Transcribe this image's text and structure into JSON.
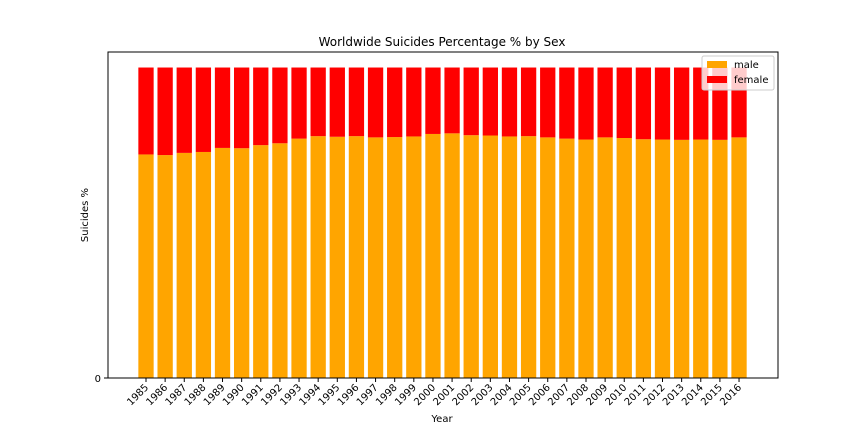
{
  "chart_data": {
    "type": "bar",
    "stacked": true,
    "title": "Worldwide Suicides Percentage % by Sex",
    "xlabel": "Year",
    "ylabel": "Suicides %",
    "ylim": [
      0,
      1.05
    ],
    "yticks": [
      "0"
    ],
    "legend_position": "top-right",
    "categories": [
      "1985",
      "1986",
      "1987",
      "1988",
      "1989",
      "1990",
      "1991",
      "1992",
      "1993",
      "1994",
      "1995",
      "1996",
      "1997",
      "1998",
      "1999",
      "2000",
      "2001",
      "2002",
      "2003",
      "2004",
      "2005",
      "2006",
      "2007",
      "2008",
      "2009",
      "2010",
      "2011",
      "2012",
      "2013",
      "2014",
      "2015",
      "2016"
    ],
    "series": [
      {
        "name": "male",
        "color": "#ffa500",
        "values": [
          0.72,
          0.718,
          0.725,
          0.728,
          0.741,
          0.74,
          0.75,
          0.756,
          0.771,
          0.779,
          0.777,
          0.779,
          0.775,
          0.776,
          0.778,
          0.786,
          0.788,
          0.782,
          0.781,
          0.778,
          0.779,
          0.775,
          0.771,
          0.768,
          0.775,
          0.773,
          0.769,
          0.768,
          0.767,
          0.768,
          0.767,
          0.775
        ]
      },
      {
        "name": "female",
        "color": "#ff0000",
        "values": [
          0.28,
          0.282,
          0.275,
          0.272,
          0.259,
          0.26,
          0.25,
          0.244,
          0.229,
          0.221,
          0.223,
          0.221,
          0.225,
          0.224,
          0.222,
          0.214,
          0.212,
          0.218,
          0.219,
          0.222,
          0.221,
          0.225,
          0.229,
          0.232,
          0.225,
          0.227,
          0.231,
          0.232,
          0.233,
          0.232,
          0.233,
          0.225
        ]
      }
    ]
  }
}
